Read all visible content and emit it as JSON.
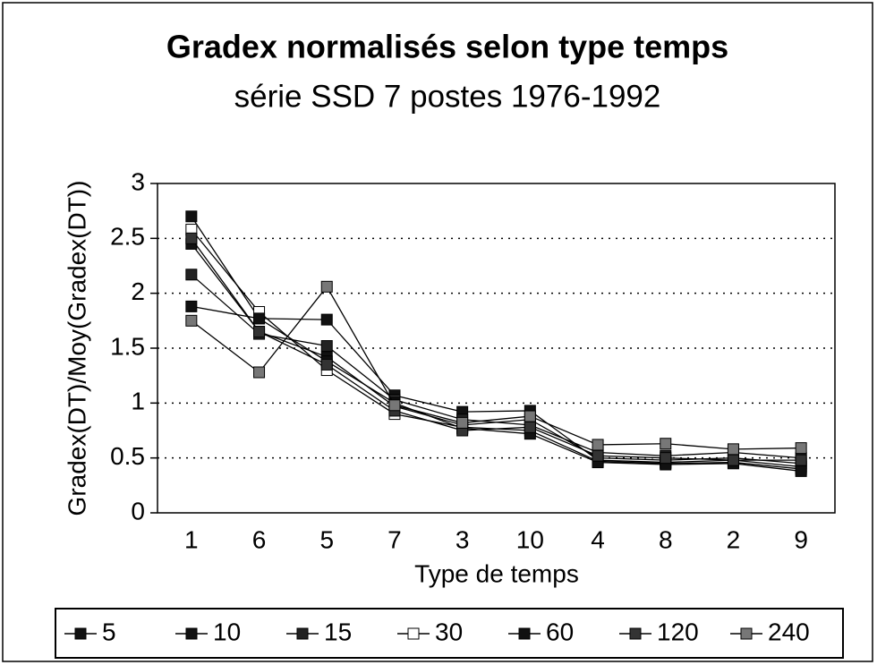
{
  "chart_data": {
    "type": "line",
    "title": "Gradex normalisés selon type temps",
    "subtitle": "série SSD 7 postes 1976-1992",
    "y_label": "Gradex(DT)/Moy(Gradex(DT))",
    "x_label": "Type de temps",
    "categories": [
      "1",
      "6",
      "5",
      "7",
      "3",
      "10",
      "4",
      "8",
      "2",
      "9"
    ],
    "ylim": [
      0,
      3
    ],
    "yticks": [
      0,
      0.5,
      1,
      1.5,
      2,
      2.5,
      3
    ],
    "grid": true,
    "legend": "bottom",
    "series": [
      {
        "name": "5",
        "color": "#111111",
        "values": [
          2.45,
          1.65,
          1.42,
          0.97,
          0.8,
          0.85,
          0.5,
          0.48,
          0.5,
          0.45
        ]
      },
      {
        "name": "10",
        "color": "#111111",
        "values": [
          2.7,
          1.77,
          1.76,
          1.07,
          0.92,
          0.93,
          0.48,
          0.46,
          0.48,
          0.42
        ]
      },
      {
        "name": "15",
        "color": "#222222",
        "values": [
          2.17,
          1.63,
          1.52,
          1.03,
          0.85,
          0.8,
          0.55,
          0.52,
          0.55,
          0.5
        ]
      },
      {
        "name": "30",
        "color": "#ffffff",
        "values": [
          2.58,
          1.83,
          1.3,
          0.9,
          0.78,
          0.75,
          0.47,
          0.45,
          0.46,
          0.4
        ]
      },
      {
        "name": "60",
        "color": "#111111",
        "values": [
          1.88,
          1.77,
          1.38,
          1.0,
          0.77,
          0.72,
          0.46,
          0.44,
          0.45,
          0.38
        ]
      },
      {
        "name": "120",
        "color": "#333333",
        "values": [
          2.5,
          1.65,
          1.35,
          0.93,
          0.75,
          0.78,
          0.52,
          0.5,
          0.48,
          0.48
        ]
      },
      {
        "name": "240",
        "color": "#777777",
        "values": [
          1.75,
          1.28,
          2.06,
          0.98,
          0.82,
          0.88,
          0.62,
          0.63,
          0.58,
          0.59
        ]
      }
    ]
  }
}
